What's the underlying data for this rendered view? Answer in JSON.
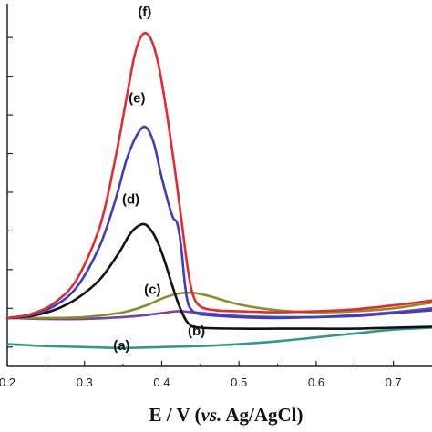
{
  "chart_data": {
    "type": "line",
    "title": "",
    "xlabel_parts": [
      "E / V (",
      "vs.",
      " Ag/AgCl)"
    ],
    "ylabel": "",
    "xlim": [
      0.2,
      0.75
    ],
    "ylim": [
      -0.2,
      3.55
    ],
    "x_ticks": [
      "0.2",
      "0.3",
      "0.4",
      "0.5",
      "0.6",
      "0.7"
    ],
    "x_tick_values": [
      0.2,
      0.3,
      0.4,
      0.5,
      0.6,
      0.7
    ],
    "y_tick_values": [
      0.0,
      0.4,
      0.8,
      1.2,
      1.6,
      2.0,
      2.4,
      2.8,
      3.2
    ],
    "grid": false,
    "series": [
      {
        "name": "(a)",
        "color": "#2e9a8c",
        "label_at": [
          0.348,
          -0.03
        ],
        "points": [
          [
            0.2,
            0.03
          ],
          [
            0.25,
            0.01
          ],
          [
            0.3,
            0.0
          ],
          [
            0.35,
            -0.01
          ],
          [
            0.4,
            0.0
          ],
          [
            0.45,
            0.01
          ],
          [
            0.5,
            0.03
          ],
          [
            0.55,
            0.06
          ],
          [
            0.6,
            0.1
          ],
          [
            0.65,
            0.14
          ],
          [
            0.7,
            0.18
          ],
          [
            0.75,
            0.2
          ]
        ]
      },
      {
        "name": "(b)",
        "color": "#7b3fa8",
        "label_at": [
          0.445,
          0.12
        ],
        "points": [
          [
            0.2,
            0.3
          ],
          [
            0.25,
            0.29
          ],
          [
            0.3,
            0.29
          ],
          [
            0.35,
            0.31
          ],
          [
            0.38,
            0.33
          ],
          [
            0.4,
            0.35
          ],
          [
            0.42,
            0.37
          ],
          [
            0.44,
            0.36
          ],
          [
            0.47,
            0.34
          ],
          [
            0.5,
            0.32
          ],
          [
            0.55,
            0.31
          ],
          [
            0.6,
            0.31
          ],
          [
            0.65,
            0.33
          ],
          [
            0.7,
            0.36
          ],
          [
            0.75,
            0.4
          ]
        ]
      },
      {
        "name": "(c)",
        "color": "#8c8c2a",
        "label_at": [
          0.388,
          0.55
        ],
        "points": [
          [
            0.2,
            0.3
          ],
          [
            0.25,
            0.3
          ],
          [
            0.3,
            0.31
          ],
          [
            0.35,
            0.36
          ],
          [
            0.38,
            0.43
          ],
          [
            0.4,
            0.5
          ],
          [
            0.42,
            0.55
          ],
          [
            0.44,
            0.56
          ],
          [
            0.46,
            0.53
          ],
          [
            0.5,
            0.44
          ],
          [
            0.55,
            0.38
          ],
          [
            0.6,
            0.36
          ],
          [
            0.65,
            0.37
          ],
          [
            0.7,
            0.4
          ],
          [
            0.75,
            0.46
          ]
        ]
      },
      {
        "name": "(d)",
        "color": "#111111",
        "label_at": [
          0.36,
          1.48
        ],
        "points": [
          [
            0.2,
            0.3
          ],
          [
            0.23,
            0.32
          ],
          [
            0.26,
            0.38
          ],
          [
            0.29,
            0.5
          ],
          [
            0.32,
            0.7
          ],
          [
            0.345,
            0.98
          ],
          [
            0.36,
            1.18
          ],
          [
            0.375,
            1.27
          ],
          [
            0.385,
            1.22
          ],
          [
            0.395,
            1.08
          ],
          [
            0.405,
            0.86
          ],
          [
            0.415,
            0.6
          ],
          [
            0.425,
            0.38
          ],
          [
            0.435,
            0.24
          ],
          [
            0.45,
            0.2
          ],
          [
            0.5,
            0.19
          ],
          [
            0.55,
            0.19
          ],
          [
            0.6,
            0.19
          ],
          [
            0.65,
            0.19
          ],
          [
            0.7,
            0.2
          ],
          [
            0.75,
            0.21
          ]
        ]
      },
      {
        "name": "(e)",
        "color": "#3d3dbf",
        "label_at": [
          0.368,
          2.53
        ],
        "points": [
          [
            0.2,
            0.3
          ],
          [
            0.23,
            0.33
          ],
          [
            0.26,
            0.42
          ],
          [
            0.29,
            0.62
          ],
          [
            0.32,
            1.05
          ],
          [
            0.34,
            1.52
          ],
          [
            0.355,
            1.95
          ],
          [
            0.37,
            2.22
          ],
          [
            0.38,
            2.27
          ],
          [
            0.39,
            2.1
          ],
          [
            0.4,
            1.75
          ],
          [
            0.41,
            1.45
          ],
          [
            0.415,
            1.33
          ],
          [
            0.42,
            1.28
          ],
          [
            0.425,
            1.05
          ],
          [
            0.43,
            0.65
          ],
          [
            0.435,
            0.43
          ],
          [
            0.445,
            0.35
          ],
          [
            0.46,
            0.33
          ],
          [
            0.5,
            0.31
          ],
          [
            0.55,
            0.3
          ],
          [
            0.6,
            0.31
          ],
          [
            0.65,
            0.32
          ],
          [
            0.7,
            0.35
          ],
          [
            0.75,
            0.38
          ]
        ]
      },
      {
        "name": "(f)",
        "color": "#e32b2b",
        "label_at": [
          0.378,
          3.42
        ],
        "points": [
          [
            0.2,
            0.3
          ],
          [
            0.23,
            0.34
          ],
          [
            0.26,
            0.45
          ],
          [
            0.29,
            0.7
          ],
          [
            0.32,
            1.25
          ],
          [
            0.34,
            1.95
          ],
          [
            0.355,
            2.6
          ],
          [
            0.365,
            3.02
          ],
          [
            0.375,
            3.23
          ],
          [
            0.385,
            3.2
          ],
          [
            0.395,
            2.95
          ],
          [
            0.405,
            2.5
          ],
          [
            0.415,
            1.95
          ],
          [
            0.425,
            1.35
          ],
          [
            0.433,
            0.85
          ],
          [
            0.44,
            0.55
          ],
          [
            0.45,
            0.42
          ],
          [
            0.47,
            0.38
          ],
          [
            0.5,
            0.37
          ],
          [
            0.55,
            0.36
          ],
          [
            0.6,
            0.37
          ],
          [
            0.65,
            0.39
          ],
          [
            0.7,
            0.43
          ],
          [
            0.75,
            0.48
          ]
        ]
      }
    ]
  }
}
